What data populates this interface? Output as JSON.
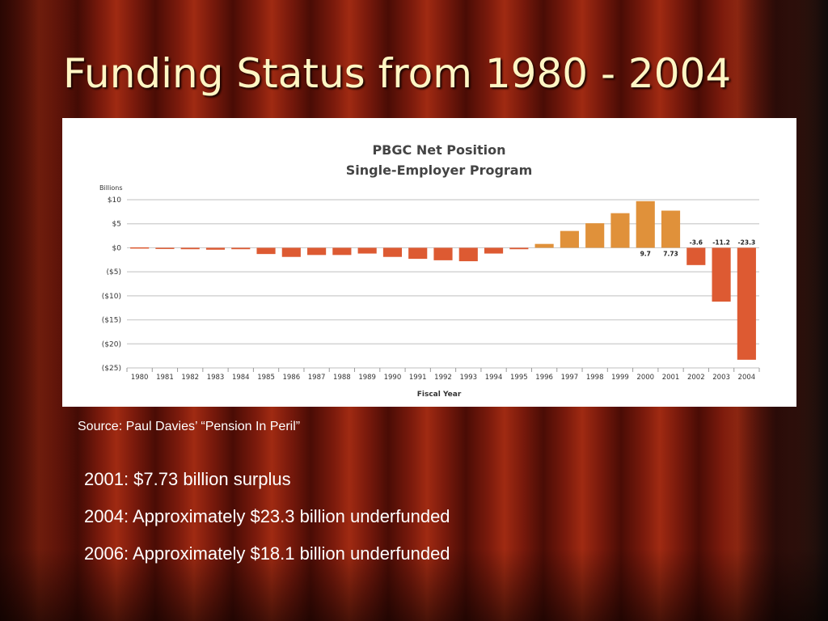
{
  "slide": {
    "title": "Funding Status from 1980 - 2004",
    "source": "Source:  Paul Davies’ “Pension In Peril”",
    "notes": [
      "2001:  $7.73 billion surplus",
      "2004:  Approximately $23.3 billion underfunded",
      "2006:  Approximately $18.1 billion underfunded"
    ]
  },
  "chart_data": {
    "type": "bar",
    "title": "PBGC Net Position",
    "subtitle": "Single-Employer Program",
    "xlabel": "Fiscal Year",
    "ylabel": "Billions",
    "ylim": [
      -25,
      10
    ],
    "yticks": [
      10,
      5,
      0,
      -5,
      -10,
      -15,
      -20,
      -25
    ],
    "ytick_labels": [
      "$10",
      "$5",
      "$0",
      "($5)",
      "($10)",
      "($15)",
      "($20)",
      "($25)"
    ],
    "grid": true,
    "categories": [
      "1980",
      "1981",
      "1982",
      "1983",
      "1984",
      "1985",
      "1986",
      "1987",
      "1988",
      "1989",
      "1990",
      "1991",
      "1992",
      "1993",
      "1994",
      "1995",
      "1996",
      "1997",
      "1998",
      "1999",
      "2000",
      "2001",
      "2002",
      "2003",
      "2004"
    ],
    "values": [
      0,
      -0.2,
      -0.3,
      -0.4,
      -0.3,
      -1.3,
      -1.9,
      -1.5,
      -1.5,
      -1.2,
      -1.9,
      -2.3,
      -2.6,
      -2.8,
      -1.2,
      -0.3,
      0.8,
      3.5,
      5.1,
      7.2,
      9.7,
      7.73,
      -3.6,
      -11.2,
      -23.3
    ],
    "data_labels": [
      {
        "year": "2000",
        "text": "9.7"
      },
      {
        "year": "2001",
        "text": "7.73"
      },
      {
        "year": "2002",
        "text": "-3.6"
      },
      {
        "year": "2003",
        "text": "-11.2"
      },
      {
        "year": "2004",
        "text": "-23.3"
      }
    ],
    "colors": {
      "positive": "#e0913a",
      "negative": "#dd5a32",
      "title": "#444444",
      "grid": "#cccccc"
    }
  }
}
